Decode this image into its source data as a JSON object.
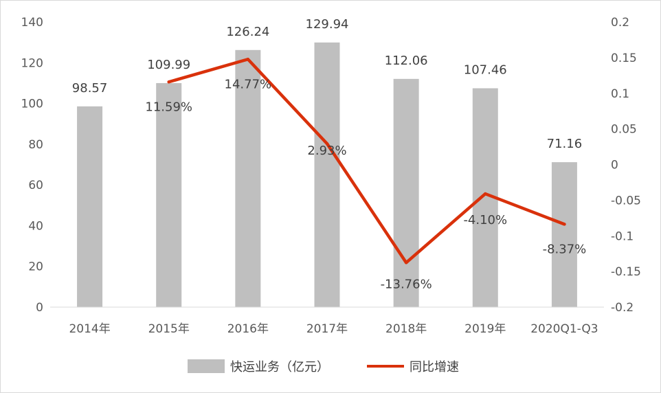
{
  "chart_data": {
    "type": "bar",
    "categories": [
      "2014年",
      "2015年",
      "2016年",
      "2017年",
      "2018年",
      "2019年",
      "2020Q1-Q3"
    ],
    "series": [
      {
        "name": "快运业务（亿元）",
        "type": "bar",
        "axis": "left",
        "color": "#bfbfbf",
        "values": [
          98.57,
          109.99,
          126.24,
          129.94,
          112.06,
          107.46,
          71.16
        ],
        "labels": [
          "98.57",
          "109.99",
          "126.24",
          "129.94",
          "112.06",
          "107.46",
          "71.16"
        ]
      },
      {
        "name": "同比增速",
        "type": "line",
        "axis": "right",
        "color": "#d9310b",
        "values": [
          null,
          0.1159,
          0.1477,
          0.0293,
          -0.1376,
          -0.041,
          -0.0837
        ],
        "labels": [
          "",
          "11.59%",
          "14.77%",
          "2.93%",
          "-13.76%",
          "-4.10%",
          "-8.37%"
        ]
      }
    ],
    "y_left": {
      "min": 0,
      "max": 140,
      "ticks": [
        "0",
        "20",
        "40",
        "60",
        "80",
        "100",
        "120",
        "140"
      ]
    },
    "y_right": {
      "min": -0.2,
      "max": 0.2,
      "ticks": [
        "-0.2",
        "-0.15",
        "-0.1",
        "-0.05",
        "0",
        "0.05",
        "0.1",
        "0.15",
        "0.2"
      ]
    },
    "grid": false,
    "legend": "bottom"
  }
}
